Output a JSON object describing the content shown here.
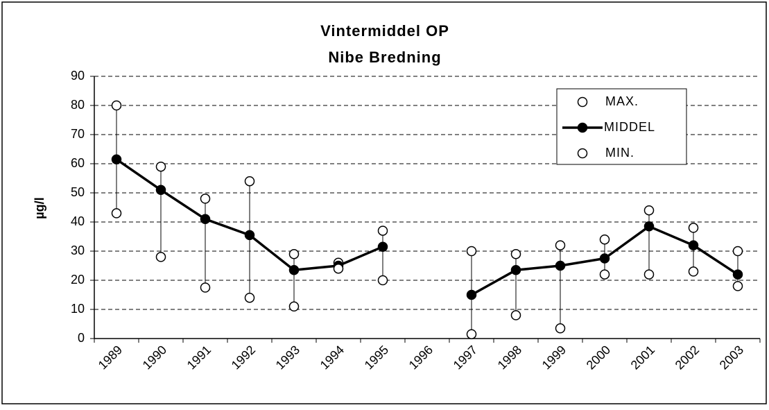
{
  "chart_data": {
    "type": "line",
    "title": "Vintermiddel  OP",
    "subtitle": "Nibe Bredning",
    "ylabel": "µg/l",
    "categories": [
      "1989",
      "1990",
      "1991",
      "1992",
      "1993",
      "1994",
      "1995",
      "1996",
      "1997",
      "1998",
      "1999",
      "2000",
      "2001",
      "2002",
      "2003"
    ],
    "series": [
      {
        "name": "MAX.",
        "color": "#000000",
        "marker": "open",
        "line": false,
        "values": [
          80,
          59,
          48,
          54,
          29,
          26,
          37,
          null,
          30,
          29,
          32,
          34,
          44,
          38,
          30
        ]
      },
      {
        "name": "MIDDEL",
        "color": "#000000",
        "marker": "filled",
        "line": true,
        "values": [
          61.5,
          51,
          41,
          35.5,
          23.5,
          25,
          31.5,
          null,
          15,
          23.5,
          25,
          27.5,
          38.5,
          32,
          22
        ]
      },
      {
        "name": "MIN.",
        "color": "#000000",
        "marker": "open",
        "line": false,
        "values": [
          43,
          28,
          17.5,
          14,
          11,
          24,
          20,
          null,
          1.5,
          8,
          3.5,
          22,
          22,
          23,
          18
        ]
      }
    ],
    "ylim": [
      0,
      90
    ],
    "yticks": [
      0,
      10,
      20,
      30,
      40,
      50,
      60,
      70,
      80,
      90
    ],
    "grid": true,
    "hi_lo_lines": true,
    "legend": "upper right"
  }
}
